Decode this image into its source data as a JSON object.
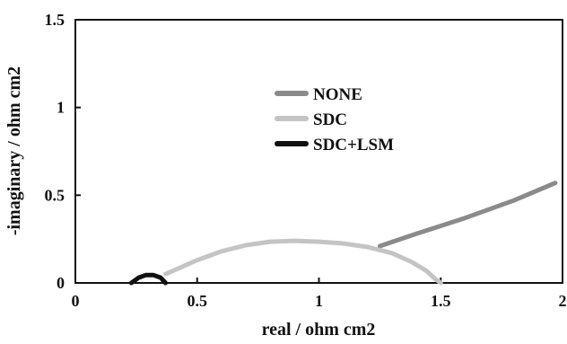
{
  "chart_data": {
    "type": "line",
    "title": "",
    "xlabel": "real / ohm cm2",
    "ylabel": "-imaginary / ohm cm2",
    "xlim": [
      0,
      2
    ],
    "ylim": [
      0,
      1.5
    ],
    "x_ticks": [
      0,
      0.5,
      1,
      1.5,
      2
    ],
    "x_tick_labels": [
      "0",
      "0.5",
      "1",
      "1.5",
      "2"
    ],
    "y_ticks": [
      0,
      0.5,
      1,
      1.5
    ],
    "y_tick_labels": [
      "0",
      "0.5",
      "1",
      "1.5"
    ],
    "grid": false,
    "legend_position": "upper-center",
    "series": [
      {
        "name": "NONE",
        "color": "#8a8a8a",
        "x": [
          1.25,
          1.4,
          1.6,
          1.8,
          1.97
        ],
        "y": [
          0.21,
          0.28,
          0.37,
          0.47,
          0.57
        ]
      },
      {
        "name": "SDC",
        "color": "#c4c4c4",
        "x": [
          0.37,
          0.5,
          0.6,
          0.7,
          0.8,
          0.9,
          1.0,
          1.1,
          1.2,
          1.3,
          1.38,
          1.44,
          1.48,
          1.5
        ],
        "y": [
          0.05,
          0.13,
          0.18,
          0.215,
          0.235,
          0.24,
          0.235,
          0.225,
          0.205,
          0.17,
          0.12,
          0.07,
          0.02,
          0.0
        ]
      },
      {
        "name": "SDC+LSM",
        "color": "#111111",
        "x": [
          0.23,
          0.26,
          0.29,
          0.32,
          0.35,
          0.37
        ],
        "y": [
          0.0,
          0.03,
          0.045,
          0.045,
          0.03,
          0.0
        ]
      }
    ]
  }
}
